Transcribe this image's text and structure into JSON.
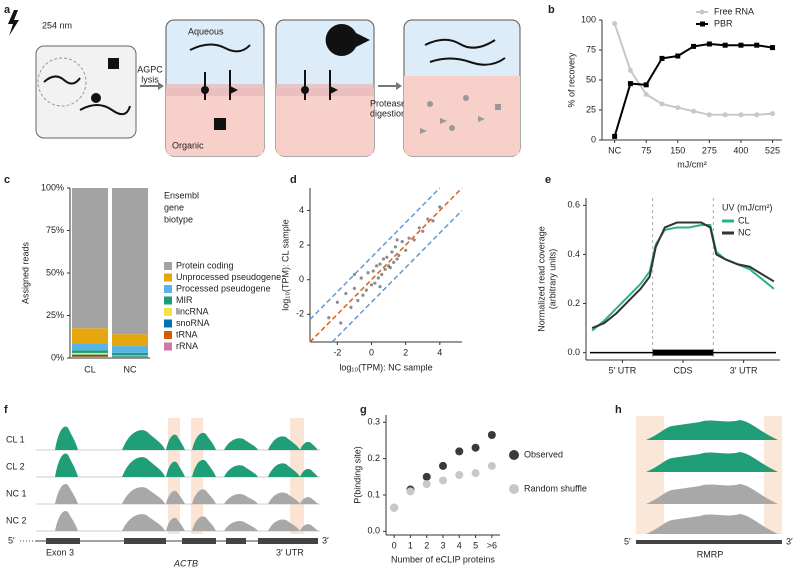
{
  "panel_labels": [
    "a",
    "b",
    "c",
    "d",
    "e",
    "f",
    "g",
    "h"
  ],
  "diagram_a": {
    "wavelength": "254 nm",
    "step1": [
      "AGPC",
      "lysis"
    ],
    "aqueous": "Aqueous",
    "organic": "Organic",
    "step2": [
      "Protease",
      "digestion"
    ]
  },
  "chart_data": [
    {
      "type": "line",
      "x": [
        0,
        0.5,
        1,
        1.5,
        2,
        2.5,
        3,
        3.5,
        4,
        4.5,
        5
      ],
      "xlim": [
        -0.4,
        5.3
      ],
      "xticks": [
        {
          "value": 0,
          "label": "NC"
        },
        {
          "value": 1,
          "label": "75"
        },
        {
          "value": 2,
          "label": "150"
        },
        {
          "value": 3,
          "label": "275"
        },
        {
          "value": 4,
          "label": "400"
        },
        {
          "value": 5,
          "label": "525"
        }
      ],
      "ylim": [
        0,
        100
      ],
      "yticks": [
        0,
        25,
        50,
        75,
        100
      ],
      "xlabel": "mJ/cm²",
      "ylabel": "% of recovery",
      "series": [
        {
          "name": "Free RNA",
          "color": "#c8c8c8",
          "marker": "circle",
          "values": [
            97,
            58,
            38,
            30,
            27,
            24,
            21,
            21,
            21,
            21,
            22
          ]
        },
        {
          "name": "PBR",
          "color": "#000000",
          "marker": "square",
          "values": [
            3,
            47,
            46,
            68,
            70,
            78,
            80,
            79,
            79,
            79,
            77
          ]
        }
      ]
    },
    {
      "type": "stacked-bar",
      "categories": [
        "CL",
        "NC"
      ],
      "ylim": [
        0,
        100
      ],
      "yticks": [
        {
          "value": 0,
          "label": "0%"
        },
        {
          "value": 25,
          "label": "25%"
        },
        {
          "value": 50,
          "label": "50%"
        },
        {
          "value": 75,
          "label": "75%"
        },
        {
          "value": 100,
          "label": "100%"
        }
      ],
      "ylabel": "Assigned reads",
      "legend_title": [
        "Ensembl",
        "gene",
        "biotype"
      ],
      "series": [
        {
          "name": "Protein coding",
          "color": "#a3a3a3",
          "values": [
            82.5,
            86
          ]
        },
        {
          "name": "Unprocessed pseudogene",
          "color": "#e6a60d",
          "values": [
            9,
            7
          ]
        },
        {
          "name": "Processed pseudogene",
          "color": "#56b4e9",
          "values": [
            4,
            4
          ]
        },
        {
          "name": "MIR",
          "color": "#1a9e77",
          "values": [
            1.5,
            1.5
          ]
        },
        {
          "name": "lincRNA",
          "color": "#f0e442",
          "values": [
            1,
            0.5
          ]
        },
        {
          "name": "snoRNA",
          "color": "#0072b2",
          "values": [
            1,
            0.5
          ]
        },
        {
          "name": "tRNA",
          "color": "#d55e00",
          "values": [
            0.5,
            0.3
          ]
        },
        {
          "name": "rRNA",
          "color": "#cc79a7",
          "values": [
            0.5,
            0.2
          ]
        }
      ]
    },
    {
      "type": "scatter",
      "color": "#000000",
      "xlim": [
        -3.6,
        5.3
      ],
      "ylim": [
        -3.6,
        5.3
      ],
      "xticks": [
        -2,
        0,
        2,
        4
      ],
      "yticks": [
        -2,
        0,
        2,
        4
      ],
      "xlabel": "log₁₀(TPM): NC sample",
      "ylabel": "log₁₀(TPM): CL sample",
      "reference_lines": [
        {
          "offset": 0,
          "color": "#e05a1e"
        },
        {
          "offset": 1.3,
          "color": "#5b9bd5"
        },
        {
          "offset": -1.3,
          "color": "#5b9bd5"
        }
      ],
      "x": [
        -2.5,
        -2,
        -1.8,
        -1.5,
        -1.2,
        -1,
        -0.8,
        -0.6,
        -0.5,
        -0.3,
        -0.2,
        0,
        0.1,
        0.2,
        0.3,
        0.4,
        0.5,
        0.6,
        0.7,
        0.8,
        0.9,
        1,
        1.1,
        1.2,
        1.3,
        1.4,
        1.5,
        1.6,
        1.8,
        2,
        2.2,
        2.5,
        2.8,
        3,
        3.3,
        3.6,
        4,
        -1,
        0.5,
        1.5
      ],
      "values": [
        -2.2,
        -1.3,
        -2.5,
        -0.8,
        -1.6,
        -0.5,
        -1.2,
        0.1,
        -0.9,
        -0.6,
        0.4,
        -0.3,
        0.5,
        -0.2,
        0.8,
        0.1,
        0.9,
        0.3,
        1.2,
        0.6,
        1.3,
        0.8,
        0.7,
        1.6,
        1,
        1.9,
        1.2,
        1.4,
        2.2,
        1.7,
        2.4,
        2.3,
        3,
        2.8,
        3.5,
        3.4,
        4.2,
        0.3,
        -0.4,
        2.3
      ]
    },
    {
      "type": "line",
      "x": [
        0,
        0.2,
        0.4,
        0.6,
        0.8,
        0.95,
        1.05,
        1.2,
        1.4,
        1.6,
        1.8,
        1.95,
        2.05,
        2.2,
        2.4,
        2.6,
        2.8,
        3
      ],
      "xlim": [
        -0.1,
        3.1
      ],
      "xticks": [
        {
          "value": 0.5,
          "label": "5′ UTR"
        },
        {
          "value": 1.5,
          "label": "CDS"
        },
        {
          "value": 2.5,
          "label": "3′ UTR"
        }
      ],
      "ylim": [
        -0.03,
        0.63
      ],
      "yticks": [
        {
          "value": 0,
          "label": "0.0"
        },
        0.2,
        0.4,
        0.6
      ],
      "ylabel": [
        "Normalized read coverage",
        "(arbitrary units)"
      ],
      "legend_title": "UV (mJ/cm²)",
      "series": [
        {
          "name": "CL",
          "color": "#2bb08a",
          "values": [
            0.09,
            0.13,
            0.18,
            0.23,
            0.28,
            0.33,
            0.44,
            0.5,
            0.51,
            0.51,
            0.52,
            0.52,
            0.41,
            0.38,
            0.36,
            0.34,
            0.3,
            0.26
          ]
        },
        {
          "name": "NC",
          "color": "#333333",
          "values": [
            0.1,
            0.12,
            0.16,
            0.21,
            0.26,
            0.31,
            0.43,
            0.51,
            0.53,
            0.53,
            0.53,
            0.51,
            0.4,
            0.38,
            0.36,
            0.35,
            0.32,
            0.29
          ]
        }
      ]
    },
    {
      "type": "dot",
      "categories": [
        "0",
        "1",
        "2",
        "3",
        "4",
        "5",
        ">6"
      ],
      "ylim": [
        -0.01,
        0.32
      ],
      "yticks": [
        {
          "value": 0,
          "label": "0.0"
        },
        0.1,
        0.2,
        0.3
      ],
      "xlabel": "Number of eCLIP proteins",
      "ylabel": "P(binding site)",
      "series": [
        {
          "name": "Observed",
          "color": "#3a3a3a",
          "values": [
            0.065,
            0.115,
            0.15,
            0.18,
            0.22,
            0.23,
            0.265
          ]
        },
        {
          "name": "Random shuffle",
          "color": "#c8c8c8",
          "values": [
            0.065,
            0.11,
            0.13,
            0.14,
            0.155,
            0.16,
            0.18
          ]
        }
      ]
    }
  ],
  "tracks_f": {
    "samples": [
      "CL 1",
      "CL 2",
      "NC 1",
      "NC 2"
    ],
    "five_prime": "5′",
    "three_prime": "3′",
    "exon": "Exon 3",
    "gene": "ACTB",
    "utr": "3′ UTR"
  },
  "tracks_h": {
    "five_prime": "5′",
    "three_prime": "3′",
    "gene": "RMRP"
  }
}
